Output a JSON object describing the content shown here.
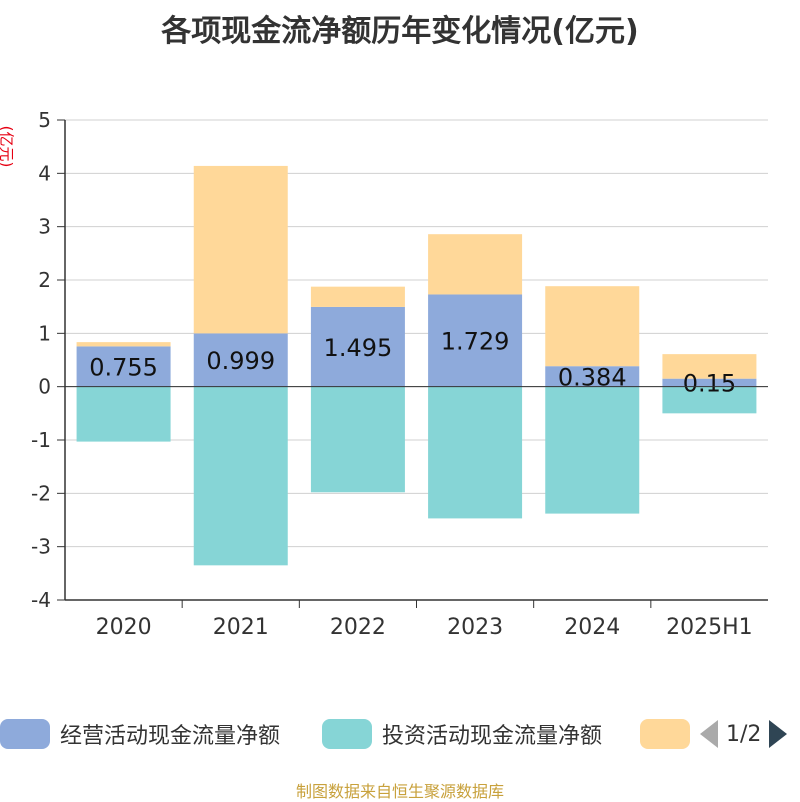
{
  "chart_data": {
    "type": "bar",
    "stacked": true,
    "title": "各项现金流净额历年变化情况(亿元)",
    "ylabel": "(亿元)",
    "categories": [
      "2020",
      "2021",
      "2022",
      "2023",
      "2024",
      "2025H1"
    ],
    "ylim": [
      -4,
      5
    ],
    "yticks": [
      5,
      4,
      3,
      2,
      1,
      0,
      -1,
      -2,
      -3,
      -4
    ],
    "grid": true,
    "legend_position": "bottom",
    "series": [
      {
        "name": "经营活动现金流量净额",
        "color": "#8eaadb",
        "values": [
          0.755,
          0.999,
          1.495,
          1.729,
          0.384,
          0.15
        ],
        "labels": [
          "0.755",
          "0.999",
          "1.495",
          "1.729",
          "0.384",
          "0.15"
        ]
      },
      {
        "name": "投资活动现金流量净额",
        "color": "#86d5d6",
        "values": [
          -1.03,
          -3.35,
          -1.98,
          -2.47,
          -2.38,
          -0.5
        ]
      },
      {
        "name": "",
        "color": "#ffd899",
        "values": [
          0.08,
          3.14,
          0.38,
          1.13,
          1.5,
          0.46
        ]
      }
    ]
  },
  "legend": {
    "page": "1/2"
  },
  "source": "制图数据来自恒生聚源数据库"
}
